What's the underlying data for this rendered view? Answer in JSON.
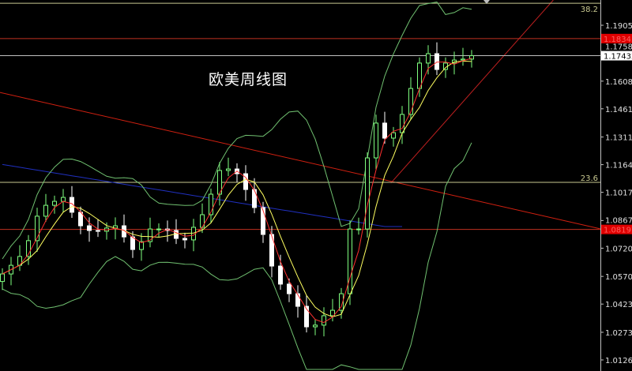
{
  "chart_data": {
    "type": "candlestick",
    "title": "欧美周线图",
    "ylim": [
      1.0102,
      1.208
    ],
    "y_ticks": [
      "1.19050",
      "1.17580",
      "1.16080",
      "1.14610",
      "1.13110",
      "1.11640",
      "1.10170",
      "1.08670",
      "1.07200",
      "1.05700",
      "1.04230",
      "1.02730",
      "1.01260"
    ],
    "closes": [
      1.0583,
      1.0629,
      1.0676,
      1.076,
      1.089,
      1.0948,
      1.0969,
      1.099,
      1.0911,
      1.0839,
      1.0814,
      1.081,
      1.0827,
      1.0839,
      1.078,
      1.0713,
      1.0755,
      1.0822,
      1.0822,
      1.0814,
      1.0772,
      1.0764,
      1.0831,
      1.0898,
      1.1007,
      1.1133,
      1.1141,
      1.1116,
      1.1032,
      1.0936,
      1.0793,
      1.0625,
      1.0529,
      1.0478,
      1.0411,
      1.0302,
      1.0311,
      1.0361,
      1.039,
      1.0478,
      1.0822,
      1.0822,
      1.12,
      1.1385,
      1.1305,
      1.1334,
      1.1431,
      1.1569,
      1.1704,
      1.1754,
      1.167,
      1.1704,
      1.172,
      1.1725,
      1.17432
    ],
    "price_labels": [
      {
        "value": "1.18343",
        "price": 1.18343,
        "bg": "#e00000",
        "fg": "#ff6060",
        "line": "#c03020"
      },
      {
        "value": "1.17432",
        "price": 1.17432,
        "bg": "#ffffff",
        "fg": "#000000",
        "line": "#c0c0c0"
      },
      {
        "value": "1.08197",
        "price": 1.08197,
        "bg": "#e00000",
        "fg": "#ff6060",
        "line": "#c03020"
      }
    ],
    "fib_levels": [
      {
        "label": "38.2",
        "price": 1.2022
      },
      {
        "label": "23.6",
        "price": 1.107
      }
    ],
    "trendlines": [
      {
        "from": [
          -0.3,
          1.1548
        ],
        "to": [
          68.8,
          1.0823
        ],
        "color": "#d02010"
      },
      {
        "from": [
          44.7,
          1.1066
        ],
        "to": [
          63.4,
          1.2039
        ],
        "color": "#c02020"
      }
    ],
    "colors": {
      "bull": "#7fff7f",
      "bear": "#ffffff",
      "ma_fast": "#ff3030",
      "ma_mid": "#ffff60",
      "ma_slow": "#2030c0",
      "bands": "#70c070",
      "fib": "#c8c890",
      "axis": "#c0c0c0"
    }
  }
}
